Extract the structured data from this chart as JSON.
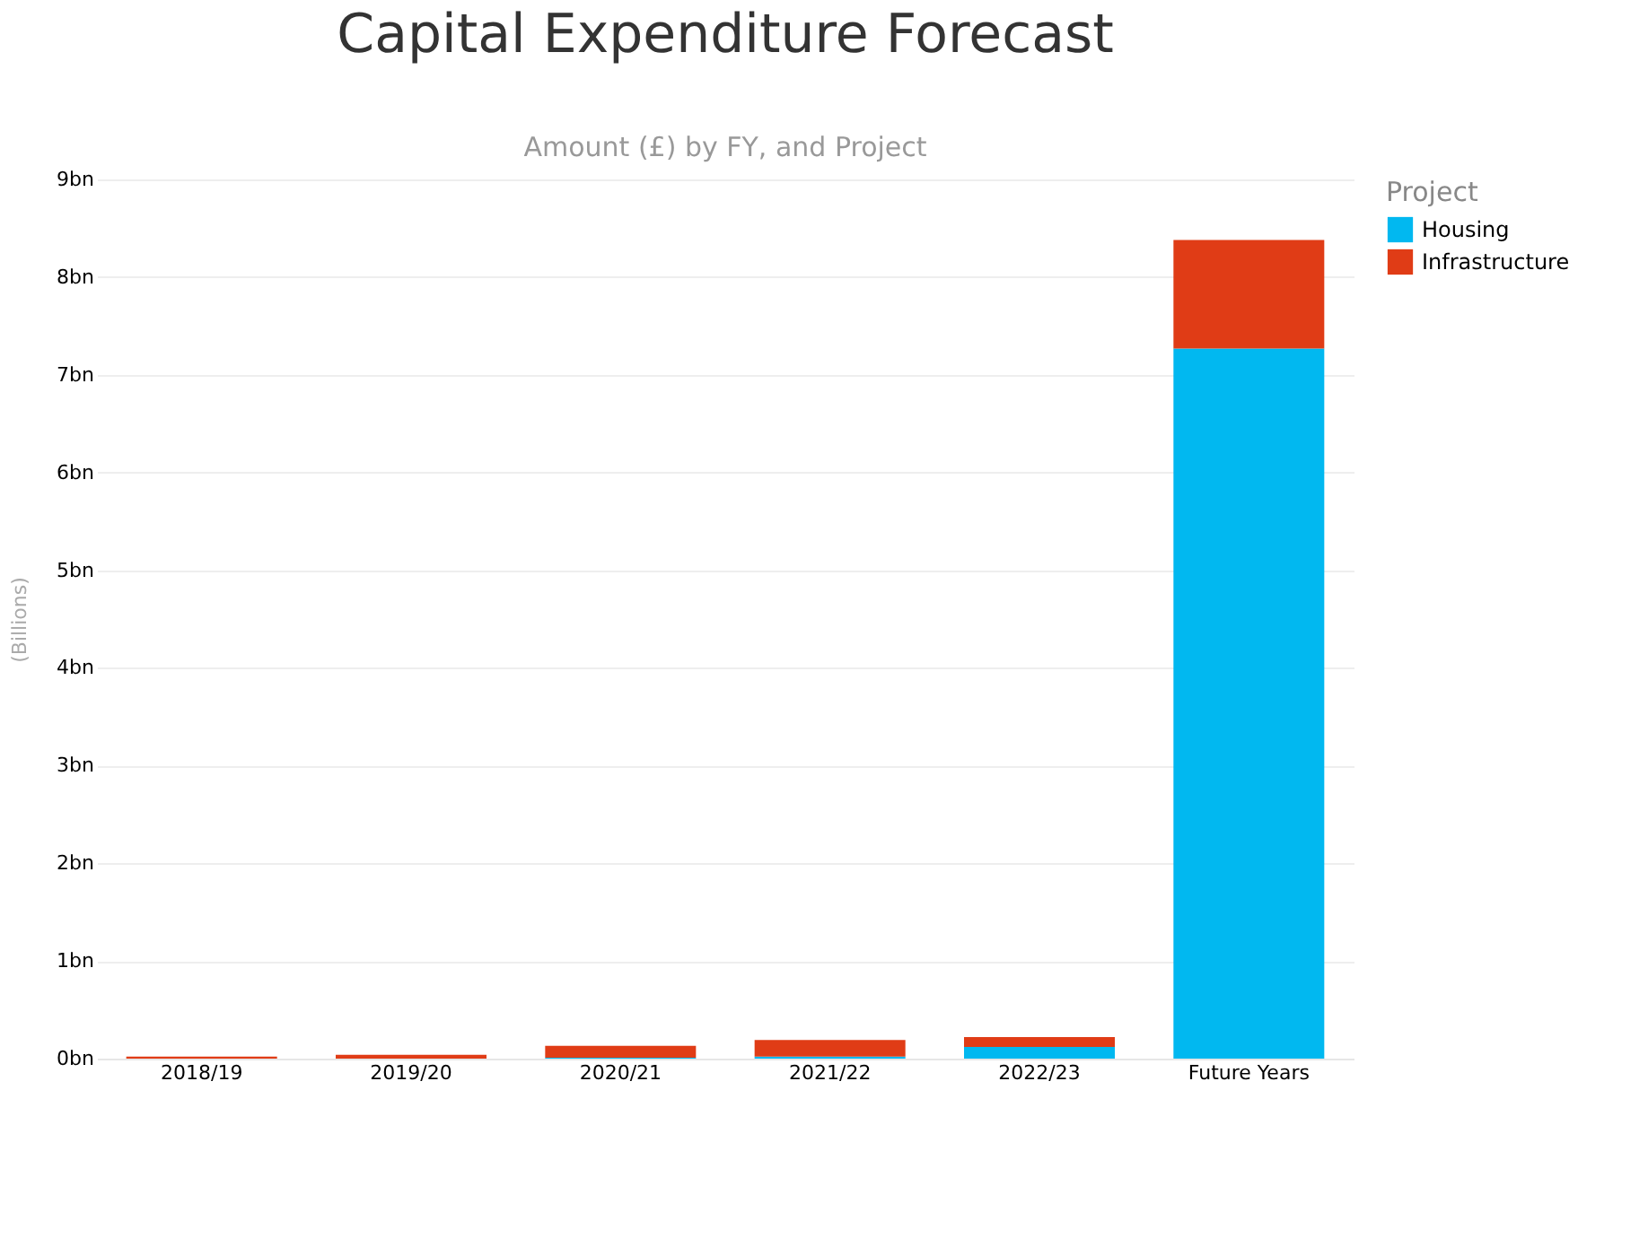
{
  "chart_data": {
    "type": "bar",
    "title": "Capital Expenditure Forecast",
    "subtitle": "Amount (£) by FY, and Project",
    "ylabel": "(Billions)",
    "legend_title": "Project",
    "categories": [
      "2018/19",
      "2019/20",
      "2020/21",
      "2021/22",
      "2022/23",
      "Future Years"
    ],
    "series": [
      {
        "name": "Housing",
        "color": "#01b8f0",
        "values": [
          0.0,
          0.0,
          0.01,
          0.02,
          0.12,
          7.27
        ]
      },
      {
        "name": "Infrastructure",
        "color": "#e03c16",
        "values": [
          0.02,
          0.04,
          0.12,
          0.17,
          0.1,
          1.11
        ]
      }
    ],
    "stacked": true,
    "ylim": [
      0,
      9
    ],
    "yticks": [
      {
        "value": 0,
        "label": "0bn"
      },
      {
        "value": 1,
        "label": "1bn"
      },
      {
        "value": 2,
        "label": "2bn"
      },
      {
        "value": 3,
        "label": "3bn"
      },
      {
        "value": 4,
        "label": "4bn"
      },
      {
        "value": 5,
        "label": "5bn"
      },
      {
        "value": 6,
        "label": "6bn"
      },
      {
        "value": 7,
        "label": "7bn"
      },
      {
        "value": 8,
        "label": "8bn"
      },
      {
        "value": 9,
        "label": "9bn"
      }
    ],
    "grid": "y",
    "legend": "top right"
  }
}
